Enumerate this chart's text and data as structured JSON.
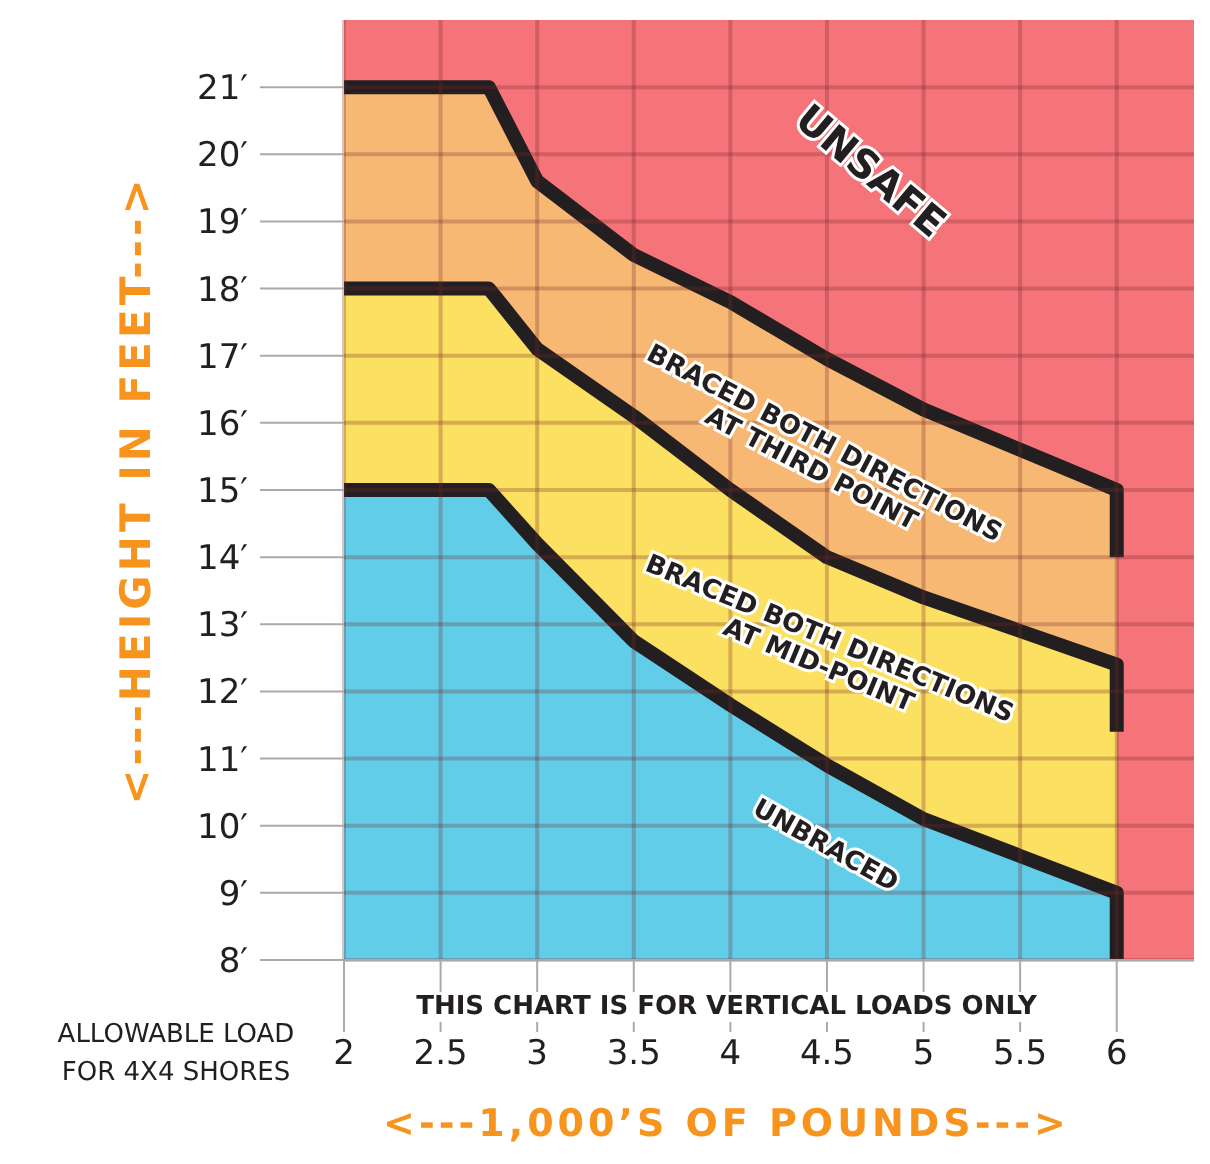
{
  "chart_data": {
    "type": "area",
    "xlabel": "<---1,000’S OF POUNDS--->",
    "ylabel": "<---HEIGHT IN FEET--->",
    "annotations": [
      "THIS CHART IS FOR VERTICAL LOADS ONLY",
      "ALLOWABLE LOAD FOR 4X4 SHORES"
    ],
    "xlim": [
      2,
      6.4
    ],
    "ylim": [
      8,
      22
    ],
    "xticks": [
      2,
      2.5,
      3,
      3.5,
      4,
      4.5,
      5,
      5.5,
      6
    ],
    "yticks": [
      {
        "value": 8,
        "label": "8′"
      },
      {
        "value": 9,
        "label": "9′"
      },
      {
        "value": 10,
        "label": "10′"
      },
      {
        "value": 11,
        "label": "11′"
      },
      {
        "value": 12,
        "label": "12′"
      },
      {
        "value": 13,
        "label": "13′"
      },
      {
        "value": 14,
        "label": "14′"
      },
      {
        "value": 15,
        "label": "15′"
      },
      {
        "value": 16,
        "label": "16′"
      },
      {
        "value": 17,
        "label": "17′"
      },
      {
        "value": 18,
        "label": "18′"
      },
      {
        "value": 19,
        "label": "19′"
      },
      {
        "value": 20,
        "label": "20′"
      },
      {
        "value": 21,
        "label": "21′"
      }
    ],
    "grid": true,
    "bands": [
      {
        "axis": "x",
        "from": 2,
        "to": 6.4,
        "label": "UNSAFE",
        "color": "#f4747a"
      }
    ],
    "series": [
      {
        "name": "BRACED BOTH DIRECTIONS AT THIRD POINT",
        "color": "#f7b874",
        "x": [
          2,
          2.75,
          3,
          3.5,
          4,
          4.5,
          5,
          5.5,
          6,
          6
        ],
        "values": [
          21,
          21,
          19.6,
          18.5,
          17.8,
          16.95,
          16.2,
          15.6,
          15,
          14
        ]
      },
      {
        "name": "BRACED BOTH DIRECTIONS AT MID-POINT",
        "color": "#fce062",
        "x": [
          2,
          2.75,
          3,
          3.5,
          4,
          4.5,
          5,
          5.5,
          6,
          6
        ],
        "values": [
          18,
          18,
          17.1,
          16.1,
          15,
          14,
          13.4,
          12.9,
          12.4,
          11.4
        ]
      },
      {
        "name": "UNBRACED",
        "color": "#62cde9",
        "x": [
          2,
          2.75,
          3,
          3.5,
          4,
          4.5,
          5,
          5.5,
          6,
          6
        ],
        "values": [
          15,
          15,
          14.2,
          12.75,
          11.8,
          10.9,
          10.1,
          9.55,
          9,
          8
        ]
      }
    ]
  }
}
